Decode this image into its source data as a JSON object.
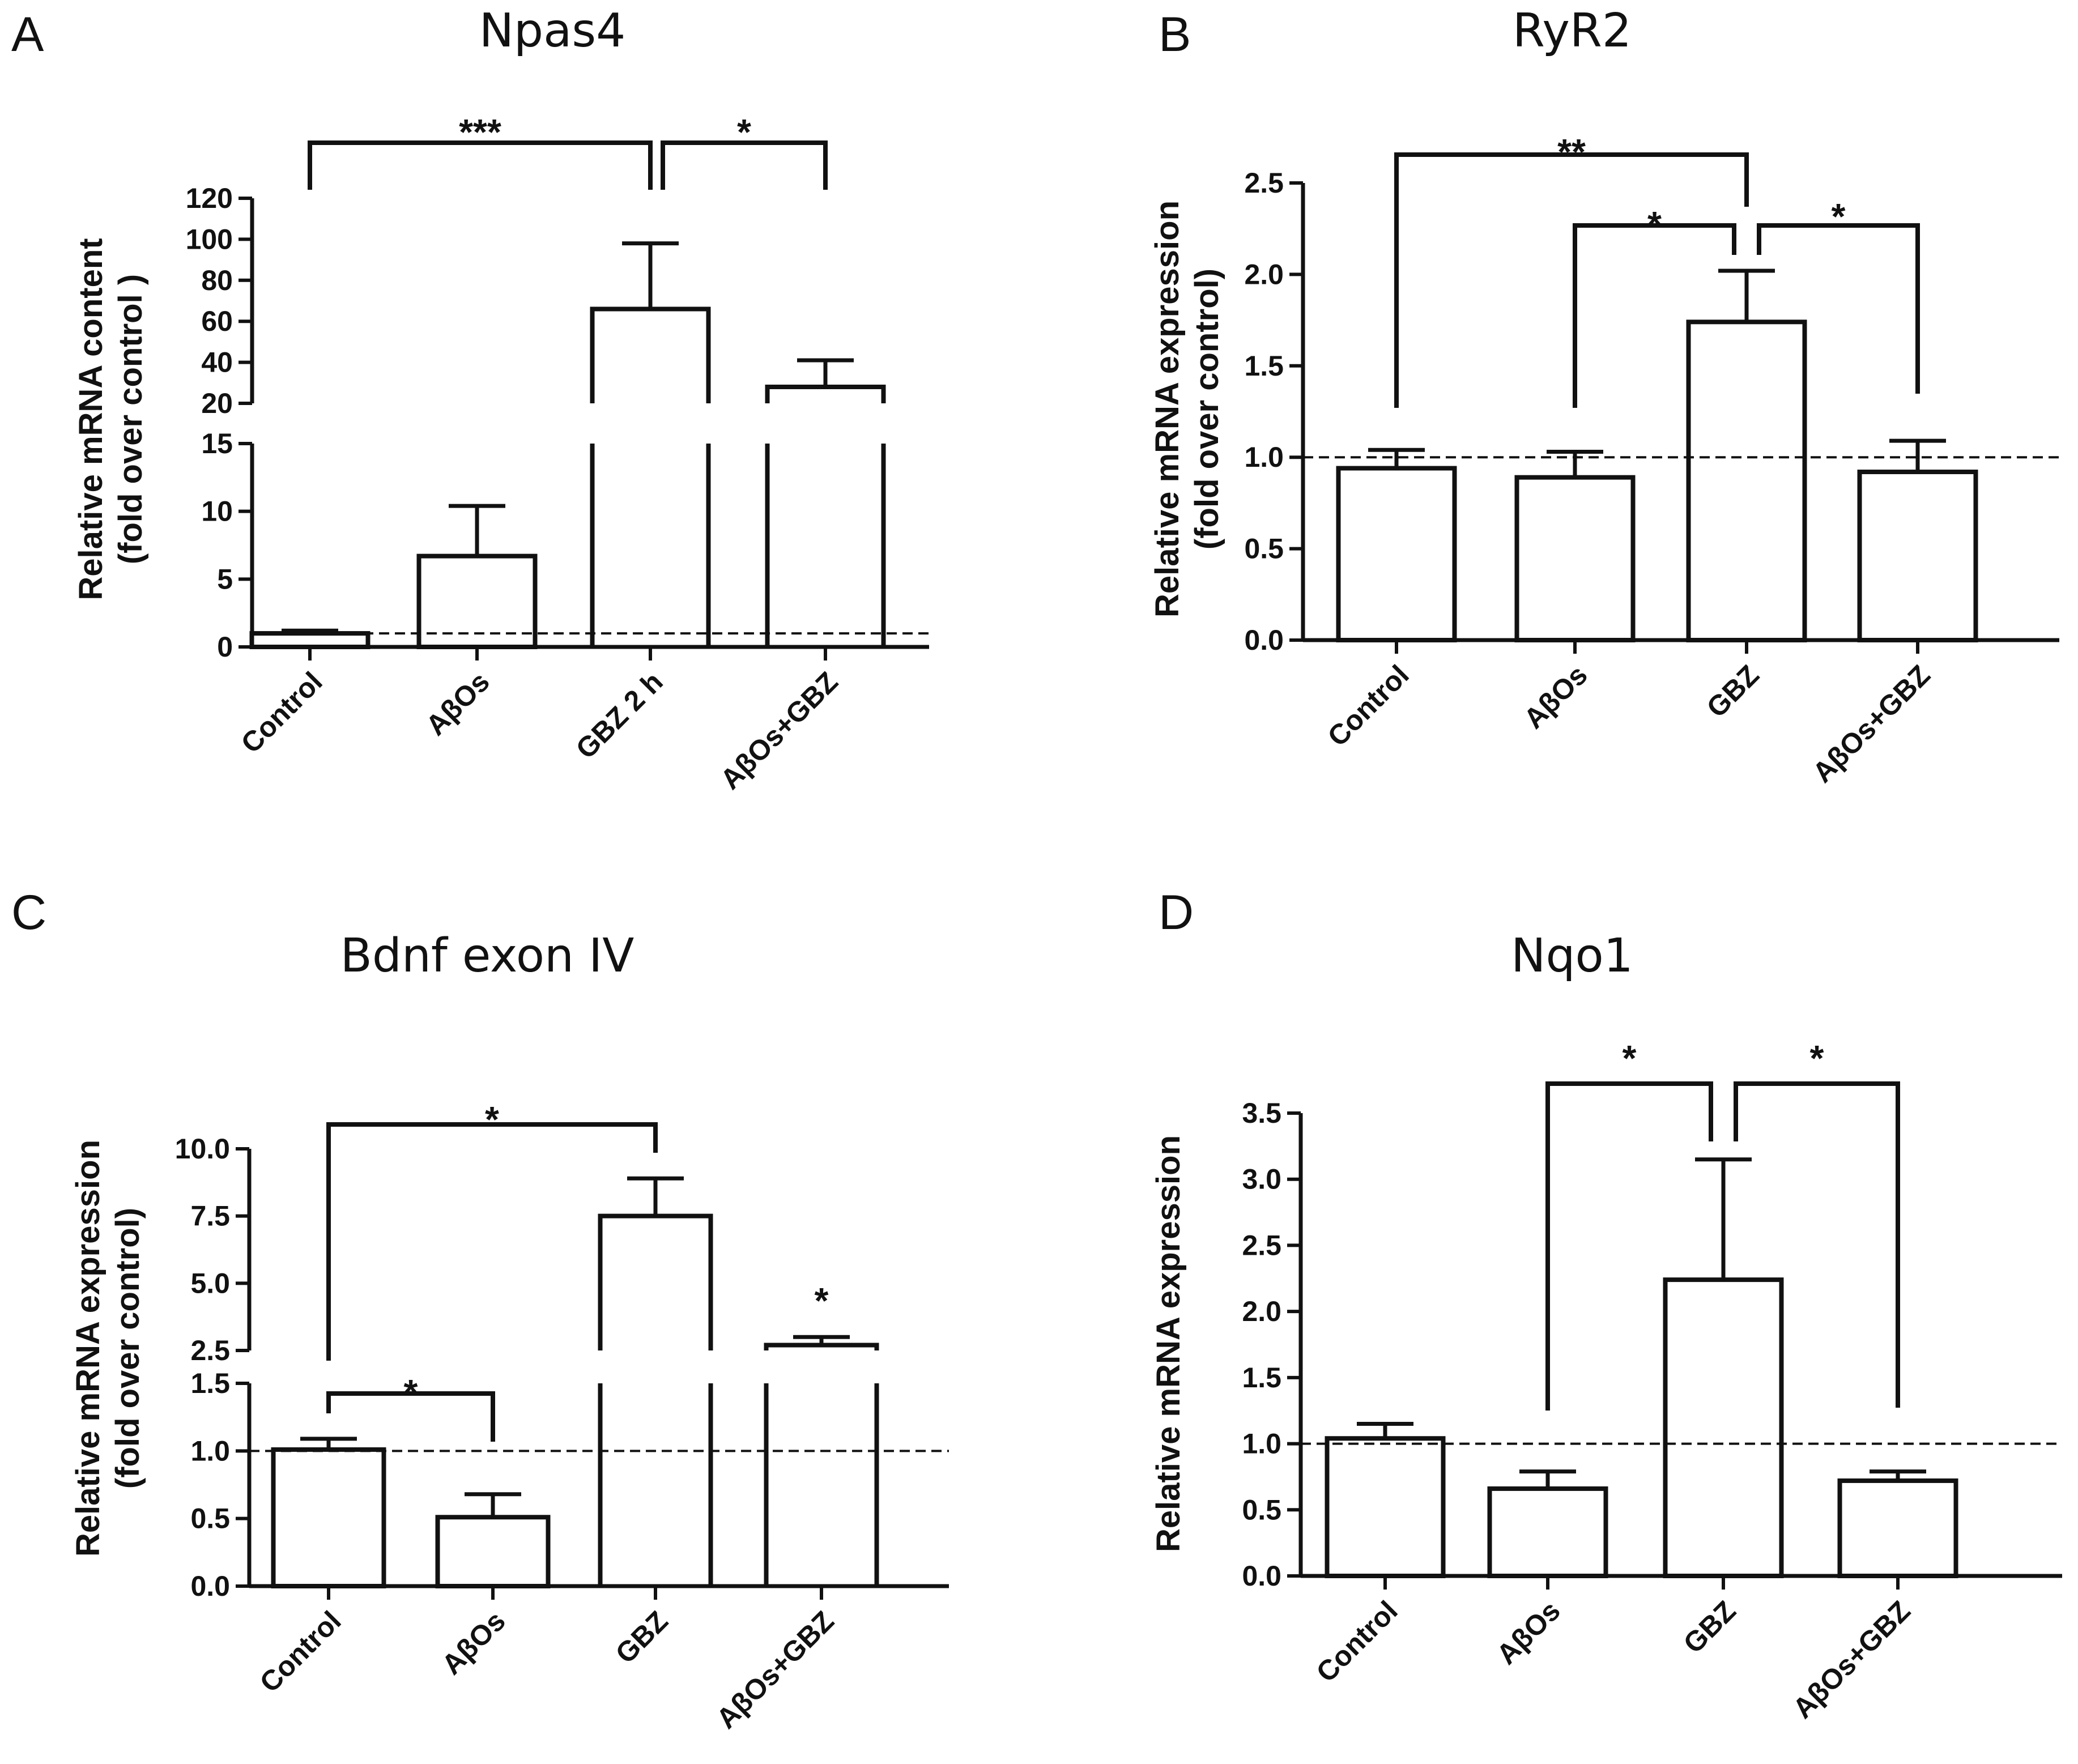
{
  "chart_data": [
    {
      "panel": "A",
      "type": "bar",
      "title": "Npas4",
      "ylabel_lines": [
        "Relative mRNA content",
        "(fold over control )"
      ],
      "categories": [
        "Control",
        "AβOs",
        "GBZ 2 h",
        "AβOs+GBZ"
      ],
      "values": [
        1.0,
        6.7,
        66,
        28
      ],
      "errors": [
        0.2,
        3.7,
        32,
        13
      ],
      "broken_axis": {
        "lower_range": [
          0,
          15
        ],
        "lower_ticks": [
          "0",
          "5",
          "10",
          "15"
        ],
        "upper_range": [
          20,
          120
        ],
        "upper_ticks": [
          "20",
          "40",
          "60",
          "80",
          "100",
          "120"
        ]
      },
      "reference_line": 1.0,
      "significance": [
        {
          "from": 0,
          "to": 2,
          "label": "***"
        },
        {
          "from": 2,
          "to": 3,
          "label": "*"
        }
      ]
    },
    {
      "panel": "B",
      "type": "bar",
      "title": "RyR2",
      "ylabel_lines": [
        "Relative mRNA expression",
        "(fold over control)"
      ],
      "categories": [
        "Control",
        "AβOs",
        "GBZ",
        "AβOs+GBZ"
      ],
      "values": [
        0.94,
        0.89,
        1.74,
        0.92
      ],
      "errors": [
        0.1,
        0.14,
        0.28,
        0.17
      ],
      "ylim": [
        0,
        2.5
      ],
      "yticks": [
        "0.0",
        "0.5",
        "1.0",
        "1.5",
        "2.0",
        "2.5"
      ],
      "reference_line": 1.0,
      "significance": [
        {
          "from": 0,
          "to": 2,
          "label": "**"
        },
        {
          "from": 1,
          "to": 2,
          "label": "*"
        },
        {
          "from": 2,
          "to": 3,
          "label": "*"
        }
      ]
    },
    {
      "panel": "C",
      "type": "bar",
      "title": "Bdnf exon IV",
      "ylabel_lines": [
        "Relative mRNA expression",
        "(fold over control)"
      ],
      "categories": [
        "Control",
        "AβOs",
        "GBZ",
        "AβOs+GBZ"
      ],
      "values": [
        1.01,
        0.51,
        7.5,
        2.7
      ],
      "errors": [
        0.08,
        0.17,
        1.4,
        0.3
      ],
      "broken_axis": {
        "lower_range": [
          0,
          1.5
        ],
        "lower_ticks": [
          "0.0",
          "0.5",
          "1.0",
          "1.5"
        ],
        "upper_range": [
          2.5,
          10
        ],
        "upper_ticks": [
          "2.5",
          "5.0",
          "7.5",
          "10.0"
        ]
      },
      "reference_line": 1.0,
      "significance": [
        {
          "from": 0,
          "to": 2,
          "label": "*"
        },
        {
          "from": 0,
          "to": 1,
          "label": "*"
        },
        {
          "bar": 3,
          "label": "*"
        }
      ]
    },
    {
      "panel": "D",
      "type": "bar",
      "title": "Nqo1",
      "ylabel_lines": [
        "Relative mRNA expression"
      ],
      "categories": [
        "Control",
        "AβOs",
        "GBZ",
        "AβOs+GBZ"
      ],
      "values": [
        1.04,
        0.66,
        2.24,
        0.72
      ],
      "errors": [
        0.11,
        0.13,
        0.91,
        0.07
      ],
      "ylim": [
        0,
        3.5
      ],
      "yticks": [
        "0.0",
        "0.5",
        "1.0",
        "1.5",
        "2.0",
        "2.5",
        "3.0",
        "3.5"
      ],
      "reference_line": 1.0,
      "significance": [
        {
          "from": 1,
          "to": 2,
          "label": "*"
        },
        {
          "from": 2,
          "to": 3,
          "label": "*"
        }
      ]
    }
  ]
}
